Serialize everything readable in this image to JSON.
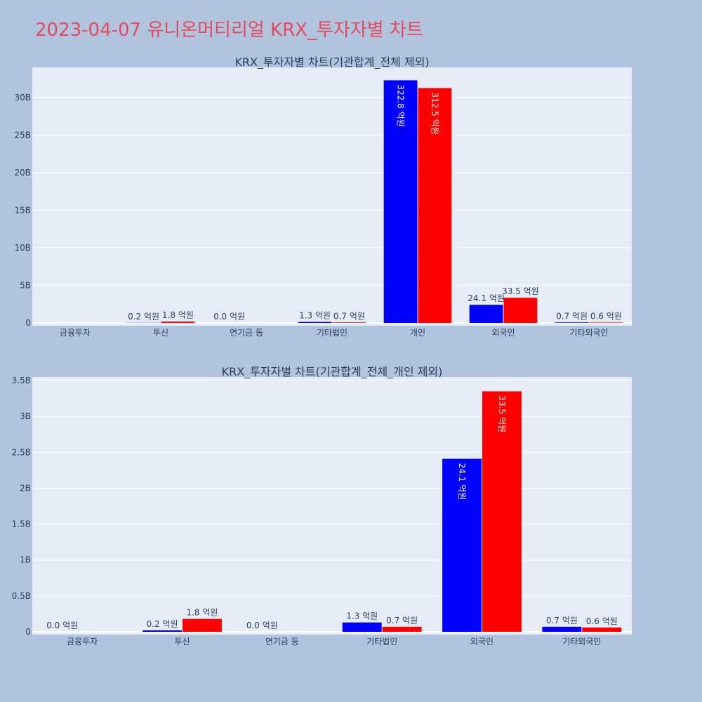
{
  "page": {
    "title": "2023-04-07 유니온머티리얼 KRX_투자자별 차트"
  },
  "colors": {
    "series_a": "#0000ff",
    "series_b": "#ff0000",
    "plot_bg": "#e5ecf6",
    "page_bg": "#b0c4de",
    "title": "#e8485c"
  },
  "chart_data": [
    {
      "type": "bar",
      "title": "KRX_투자자별 차트(기관합계_전체 제외)",
      "categories": [
        "금융투자",
        "투신",
        "연기금 등",
        "기타법인",
        "개인",
        "외국인",
        "기타외국인"
      ],
      "ylim": [
        0,
        34000000000
      ],
      "yticks": [
        0,
        5000000000,
        10000000000,
        15000000000,
        20000000000,
        25000000000,
        30000000000
      ],
      "ytick_labels": [
        "0",
        "5B",
        "10B",
        "15B",
        "20B",
        "25B",
        "30B"
      ],
      "grid": true,
      "series": [
        {
          "values": [
            0,
            20000000,
            0,
            130000000,
            32280000000,
            2410000000,
            70000000
          ],
          "labels": [
            "",
            "0.2 억원",
            "0.0 억원",
            "1.3 억원",
            "322.8 억원",
            "24.1 억원",
            "0.7 억원"
          ]
        },
        {
          "values": [
            0,
            180000000,
            0,
            70000000,
            31250000000,
            3350000000,
            60000000
          ],
          "labels": [
            "",
            "1.8 억원",
            "",
            "0.7 억원",
            "312.5 억원",
            "33.5 억원",
            "0.6 억원"
          ]
        }
      ]
    },
    {
      "type": "bar",
      "title": "KRX_투자자별 차트(기관합계_전체_개인 제외)",
      "categories": [
        "금융투자",
        "투신",
        "연기금 등",
        "기타법인",
        "외국인",
        "기타외국인"
      ],
      "ylim": [
        0,
        3550000000
      ],
      "yticks": [
        0,
        500000000,
        1000000000,
        1500000000,
        2000000000,
        2500000000,
        3000000000,
        3500000000
      ],
      "ytick_labels": [
        "0",
        "0.5B",
        "1B",
        "1.5B",
        "2B",
        "2.5B",
        "3B",
        "3.5B"
      ],
      "grid": true,
      "series": [
        {
          "values": [
            0,
            20000000,
            0,
            130000000,
            2410000000,
            70000000
          ],
          "labels": [
            "0.0 억원",
            "0.2 억원",
            "0.0 억원",
            "1.3 억원",
            "24.1 억원",
            "0.7 억원"
          ]
        },
        {
          "values": [
            0,
            180000000,
            0,
            70000000,
            3350000000,
            60000000
          ],
          "labels": [
            "",
            "1.8 억원",
            "",
            "0.7 억원",
            "33.5 억원",
            "0.6 억원"
          ]
        }
      ]
    }
  ]
}
